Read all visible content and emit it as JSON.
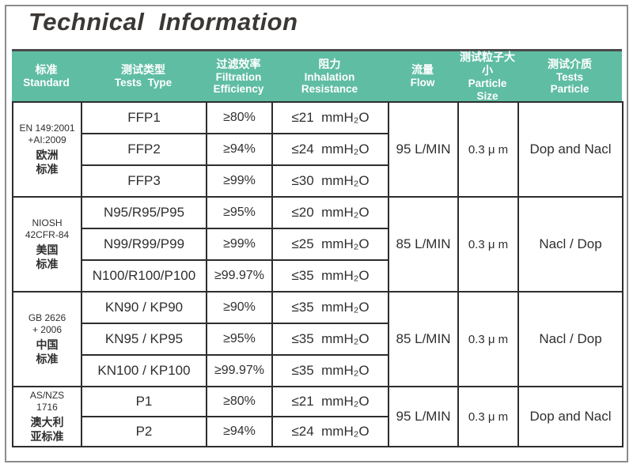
{
  "page": {
    "title": "Technical  Information"
  },
  "colors": {
    "header_bg": "#5fbda3",
    "header_top_border": "#4a4a4a",
    "table_border": "#2d2d2d",
    "title_text": "#3b3735",
    "header_text": "#ffffff",
    "body_text": "#2f2f2f",
    "frame_border": "#8c8c8c"
  },
  "header": {
    "columns": [
      {
        "zh": "标准",
        "en": "Standard"
      },
      {
        "zh": "测试类型",
        "en": "Tests  Type"
      },
      {
        "zh": "过滤效率",
        "en": "Filtration\nEfficiency"
      },
      {
        "zh": "阻力",
        "en": "Inhalation\nResistance"
      },
      {
        "zh": "流量",
        "en": "Flow"
      },
      {
        "zh": "测试粒子大小",
        "en": "Particle\nSize"
      },
      {
        "zh": "测试介质",
        "en": "Tests\nParticle"
      }
    ]
  },
  "table": {
    "sections": [
      {
        "standard_code": "EN 149:2001\n+AI:2009",
        "standard_zh": "欧洲\n标准",
        "flow": "95 L/MIN",
        "particle_size": "0.3 μ m",
        "test_media": "Dop and Nacl",
        "rows": [
          {
            "type": "FFP1",
            "efficiency": "≥80%",
            "resistance": "≤21  mmH₂O"
          },
          {
            "type": "FFP2",
            "efficiency": "≥94%",
            "resistance": "≤24  mmH₂O"
          },
          {
            "type": "FFP3",
            "efficiency": "≥99%",
            "resistance": "≤30  mmH₂O"
          }
        ]
      },
      {
        "standard_code": "NIOSH\n42CFR-84",
        "standard_zh": "美国\n标准",
        "flow": "85 L/MIN",
        "particle_size": "0.3 μ m",
        "test_media": "Nacl / Dop",
        "rows": [
          {
            "type": "N95/R95/P95",
            "efficiency": "≥95%",
            "resistance": "≤20  mmH₂O"
          },
          {
            "type": "N99/R99/P99",
            "efficiency": "≥99%",
            "resistance": "≤25  mmH₂O"
          },
          {
            "type": "N100/R100/P100",
            "efficiency": "≥99.97%",
            "resistance": "≤35  mmH₂O"
          }
        ]
      },
      {
        "standard_code": "GB 2626\n+ 2006",
        "standard_zh": "中国\n标准",
        "flow": "85 L/MIN",
        "particle_size": "0.3 μ m",
        "test_media": "Nacl / Dop",
        "rows": [
          {
            "type": "KN90 / KP90",
            "efficiency": "≥90%",
            "resistance": "≤35  mmH₂O"
          },
          {
            "type": "KN95 / KP95",
            "efficiency": "≥95%",
            "resistance": "≤35  mmH₂O"
          },
          {
            "type": "KN100 / KP100",
            "efficiency": "≥99.97%",
            "resistance": "≤35  mmH₂O"
          }
        ]
      },
      {
        "standard_code": "AS/NZS\n1716",
        "standard_zh": "澳大利\n亚标准",
        "flow": "95 L/MIN",
        "particle_size": "0.3 μ m",
        "test_media": "Dop and Nacl",
        "rows": [
          {
            "type": "P1",
            "efficiency": "≥80%",
            "resistance": "≤21  mmH₂O"
          },
          {
            "type": "P2",
            "efficiency": "≥94%",
            "resistance": "≤24  mmH₂O"
          }
        ]
      }
    ]
  }
}
